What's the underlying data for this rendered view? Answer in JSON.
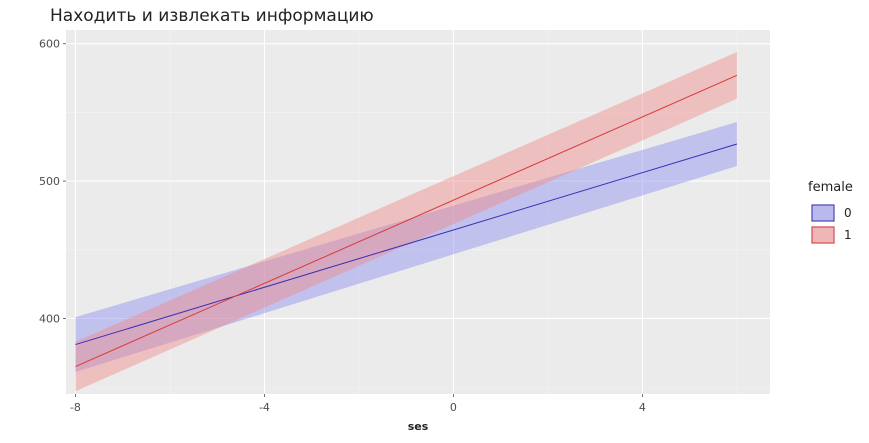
{
  "chart_data": {
    "type": "line",
    "title": "Находить и извлекать информацию",
    "xlabel": "ses",
    "ylabel": "",
    "xlim": [
      -8.2,
      6.7
    ],
    "ylim": [
      345,
      610
    ],
    "x_ticks": [
      -8,
      -4,
      0,
      4
    ],
    "x_tick_labels": [
      "-8",
      "-4",
      "0",
      "4"
    ],
    "y_ticks": [
      400,
      500,
      600
    ],
    "y_tick_labels": [
      "400",
      "500",
      "600"
    ],
    "grid": true,
    "legend": {
      "title": "female",
      "placement": "right",
      "entries": [
        "0",
        "1"
      ]
    },
    "series": [
      {
        "name": "0",
        "color": "#3a2fb5",
        "fill": "#8f8ff0",
        "x": [
          -8,
          6
        ],
        "y": [
          381,
          527
        ],
        "lower": [
          361,
          511
        ],
        "upper": [
          401,
          543
        ]
      },
      {
        "name": "1",
        "color": "#d93a3a",
        "fill": "#f08a8a",
        "x": [
          -8,
          6
        ],
        "y": [
          365,
          577
        ],
        "lower": [
          347,
          560
        ],
        "upper": [
          383,
          594
        ]
      }
    ]
  }
}
